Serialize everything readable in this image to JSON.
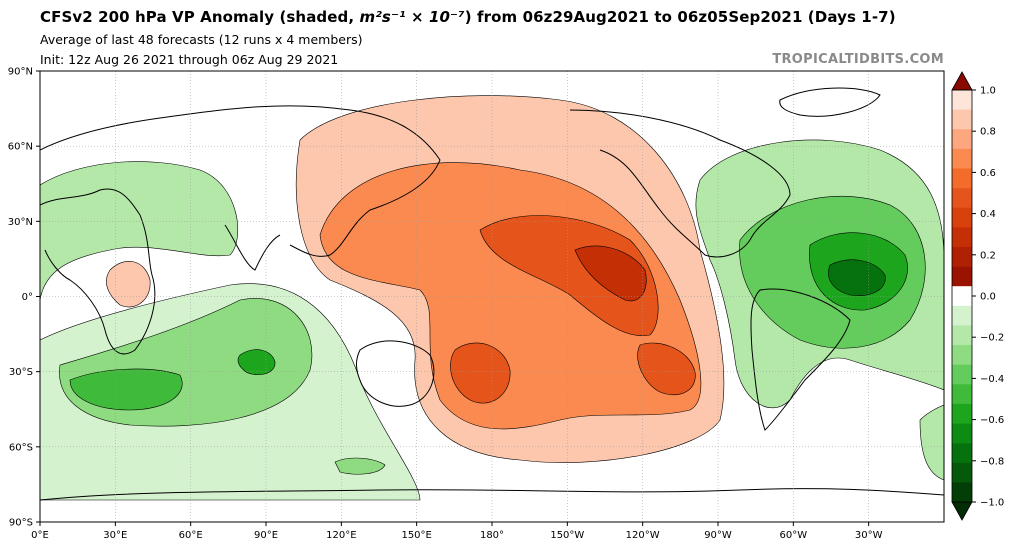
{
  "header": {
    "title_prefix": "CFSv2 200 hPa VP Anomaly (shaded, ",
    "title_units": "m²s⁻¹ × 10⁻⁷",
    "title_suffix": ") from 06z29Aug2021 to 06z05Sep2021 (Days 1-7)",
    "subtitle_1": "Average of last 48 forecasts (12 runs x 4 members)",
    "subtitle_2": "Init: 12z Aug 26 2021 through 06z Aug 29 2021",
    "brand": "TROPICALTIDBITS.COM"
  },
  "axes": {
    "lat_labels": [
      "90°N",
      "60°N",
      "30°N",
      "0°",
      "30°S",
      "60°S",
      "90°S"
    ],
    "lon_labels": [
      "0°E",
      "30°E",
      "60°E",
      "90°E",
      "120°E",
      "150°E",
      "180°",
      "150°W",
      "120°W",
      "90°W",
      "60°W",
      "30°W"
    ]
  },
  "colorbar": {
    "tick_labels": [
      "1.0",
      "0.8",
      "0.6",
      "0.4",
      "0.2",
      "0.0",
      "−0.2",
      "−0.4",
      "−0.6",
      "−0.8",
      "−1.0"
    ],
    "colors": [
      "#fee5d9",
      "#fcc7ac",
      "#fca77f",
      "#fb8a50",
      "#f36c2a",
      "#e5541a",
      "#d8400c",
      "#c52f06",
      "#b02003",
      "#9a1200",
      "#ffffff",
      "#d5f2cf",
      "#b3e8a9",
      "#8edb82",
      "#64cc5c",
      "#3fba3a",
      "#1ea51e",
      "#0d8c13",
      "#06720d",
      "#045a0a",
      "#023f06"
    ]
  },
  "map": {
    "regions_positive": [
      {
        "name": "central-pacific-high",
        "level": 3
      },
      {
        "name": "north-pacific-core",
        "level": 6
      },
      {
        "name": "south-pacific-core",
        "level": 5
      },
      {
        "name": "east-africa-weak",
        "level": 1
      }
    ],
    "regions_negative": [
      {
        "name": "atlantic-americas",
        "level": 6
      },
      {
        "name": "indian-ocean",
        "level": 4
      },
      {
        "name": "south-indian-ocean",
        "level": 3
      }
    ]
  }
}
